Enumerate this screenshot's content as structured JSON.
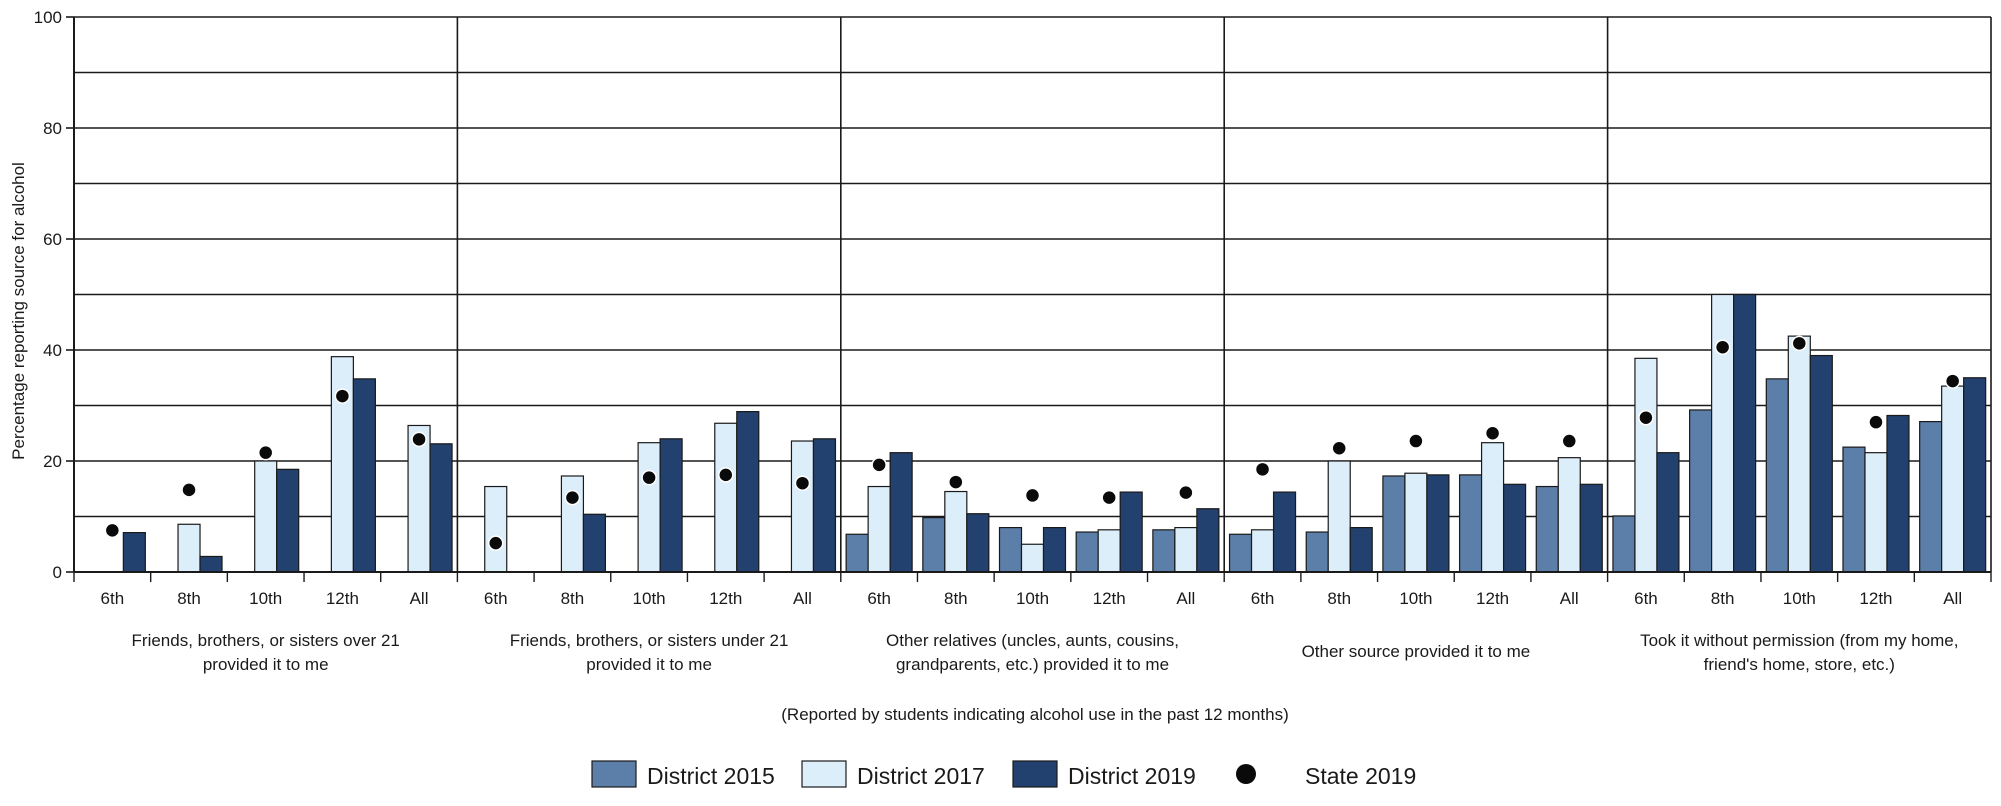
{
  "chart_data": {
    "type": "bar",
    "ylabel": "Percentage reporting source for alcohol",
    "note": "(Reported by students indicating alcohol use in the past 12 months)",
    "ylim": [
      0,
      100
    ],
    "yticks": [
      0,
      20,
      40,
      60,
      80,
      100
    ],
    "grid": true,
    "legend_position": "bottom",
    "categories": [
      "6th",
      "8th",
      "10th",
      "12th",
      "All"
    ],
    "groups": [
      {
        "label_lines": [
          "Friends, brothers, or sisters over 21",
          "provided it to me"
        ]
      },
      {
        "label_lines": [
          "Friends, brothers, or sisters under 21",
          "provided it to me"
        ]
      },
      {
        "label_lines": [
          "Other relatives (uncles, aunts, cousins,",
          "grandparents, etc.) provided it to me"
        ]
      },
      {
        "label_lines": [
          "Other source provided it to me"
        ]
      },
      {
        "label_lines": [
          "Took it without permission (from my home,",
          "friend's home, store, etc.)"
        ]
      }
    ],
    "series": [
      {
        "name": "District 2015",
        "kind": "bar",
        "color": "#5b7fa8",
        "values": [
          [
            null,
            null,
            null,
            null,
            null
          ],
          [
            null,
            null,
            null,
            null,
            null
          ],
          [
            6.8,
            9.8,
            8.0,
            7.2,
            7.6
          ],
          [
            6.8,
            7.2,
            17.3,
            17.5,
            15.4
          ],
          [
            10.1,
            29.2,
            34.8,
            22.5,
            27.1
          ]
        ]
      },
      {
        "name": "District 2017",
        "kind": "bar",
        "color": "#ddeefb",
        "values": [
          [
            null,
            8.6,
            20.0,
            38.8,
            26.4
          ],
          [
            15.4,
            17.3,
            23.3,
            26.8,
            23.6
          ],
          [
            15.4,
            14.5,
            5.0,
            7.6,
            8.0
          ],
          [
            7.6,
            20.0,
            17.8,
            23.3,
            20.6
          ],
          [
            38.5,
            50.0,
            42.5,
            21.5,
            33.5
          ]
        ]
      },
      {
        "name": "District 2019",
        "kind": "bar",
        "color": "#22416e",
        "values": [
          [
            7.1,
            2.8,
            18.5,
            34.8,
            23.1
          ],
          [
            null,
            10.4,
            24.0,
            28.9,
            24.0
          ],
          [
            21.5,
            10.5,
            8.0,
            14.4,
            11.4
          ],
          [
            14.4,
            8.0,
            17.5,
            15.8,
            15.8
          ],
          [
            21.5,
            50.0,
            39.0,
            28.2,
            35.0
          ]
        ]
      },
      {
        "name": "State 2019",
        "kind": "dot",
        "color": "#0a0a0a",
        "values": [
          [
            7.5,
            14.8,
            21.5,
            31.7,
            23.9
          ],
          [
            5.2,
            13.4,
            17.0,
            17.5,
            16.0
          ],
          [
            19.3,
            16.2,
            13.8,
            13.4,
            14.3
          ],
          [
            18.5,
            22.3,
            23.6,
            25.0,
            23.6
          ],
          [
            27.8,
            40.5,
            41.2,
            27.0,
            34.4
          ]
        ]
      }
    ]
  }
}
